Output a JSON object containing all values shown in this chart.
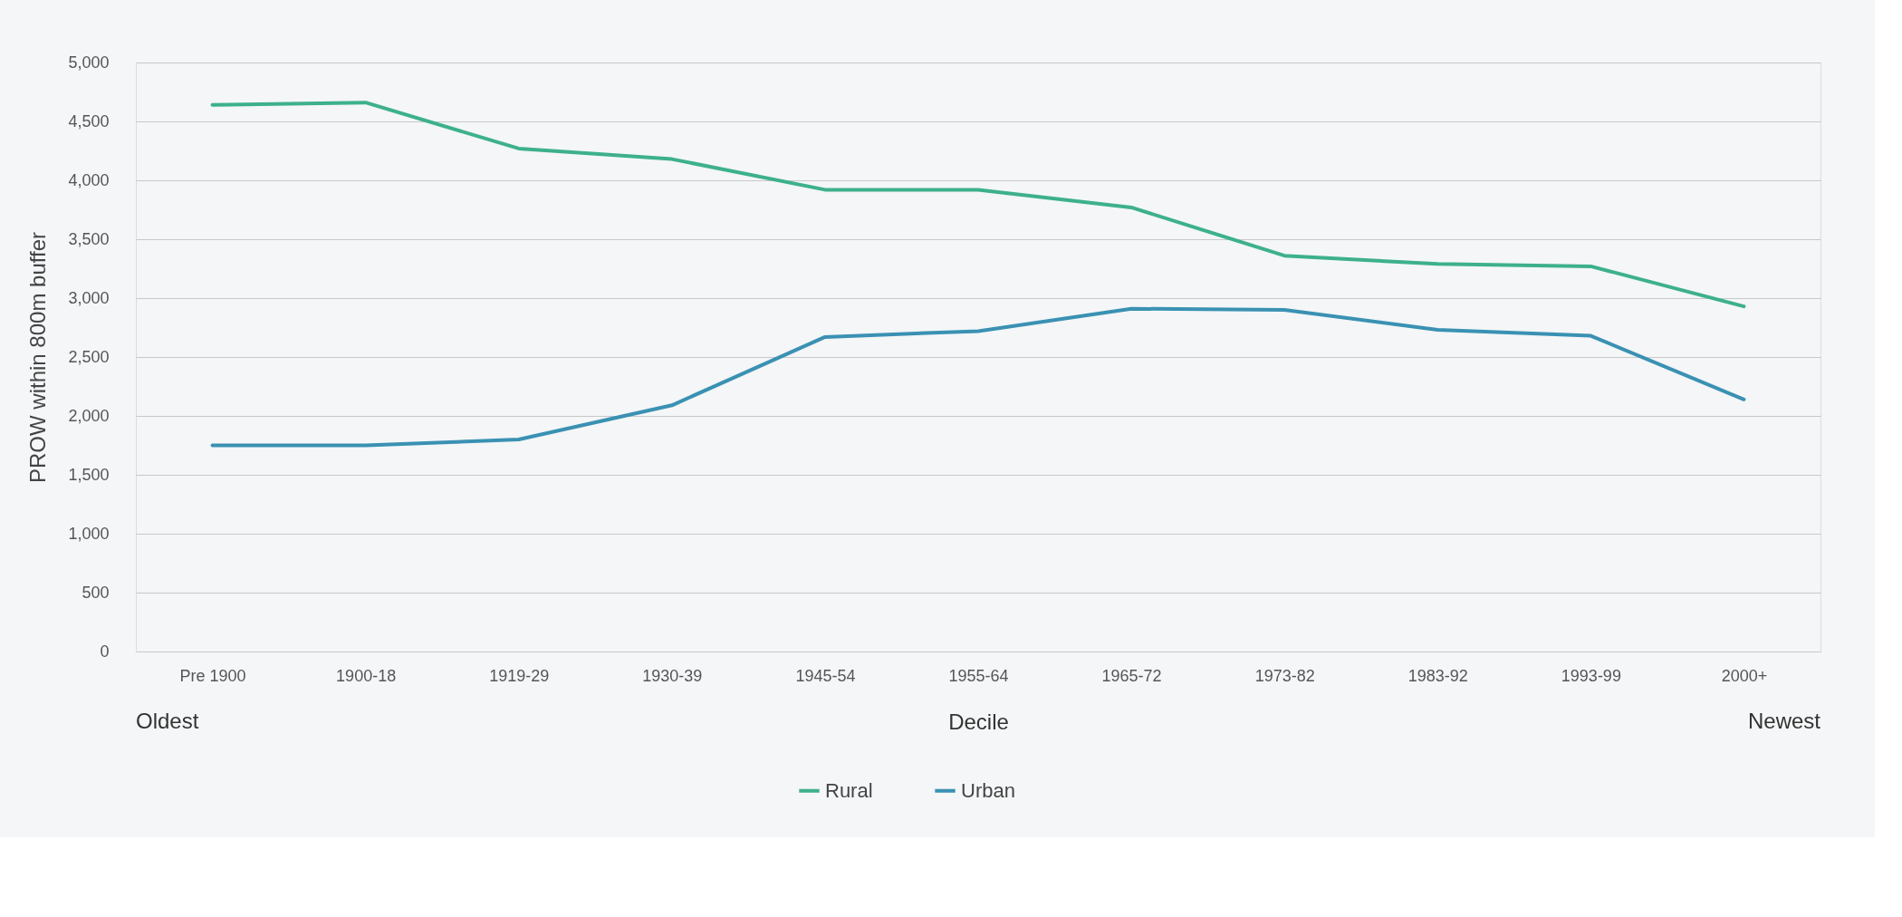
{
  "chart_data": {
    "type": "line",
    "xlabel": "Decile",
    "ylabel": "PROW within 800m buffer",
    "categories": [
      "Pre 1900",
      "1900-18",
      "1919-29",
      "1930-39",
      "1945-54",
      "1955-64",
      "1965-72",
      "1973-82",
      "1983-92",
      "1993-99",
      "2000+"
    ],
    "series": [
      {
        "name": "Rural",
        "color": "#3db08c",
        "values": [
          4640,
          4660,
          4270,
          4180,
          3920,
          3920,
          3770,
          3360,
          3290,
          3270,
          2930
        ]
      },
      {
        "name": "Urban",
        "color": "#3a91b3",
        "values": [
          1750,
          1750,
          1800,
          2090,
          2670,
          2720,
          2910,
          2900,
          2730,
          2680,
          2140
        ]
      }
    ],
    "ylim": [
      0,
      5000
    ],
    "yticks": [
      0,
      {
        "value": 500,
        "label": "500"
      },
      {
        "value": 1000,
        "label": "1,000"
      },
      {
        "value": 1500,
        "label": "1,500"
      },
      {
        "value": 2000,
        "label": "2,000"
      },
      {
        "value": 2500,
        "label": "2,500"
      },
      {
        "value": 3000,
        "label": "3,000"
      },
      {
        "value": 3500,
        "label": "3,500"
      },
      {
        "value": 4000,
        "label": "4,000"
      },
      {
        "value": 4500,
        "label": "4,500"
      },
      {
        "value": 5000,
        "label": "5,000"
      }
    ],
    "grid": "y",
    "legend": "bottom",
    "marker": "none",
    "line_style": "solid",
    "annotations": [
      "Oldest",
      "Newest"
    ]
  }
}
